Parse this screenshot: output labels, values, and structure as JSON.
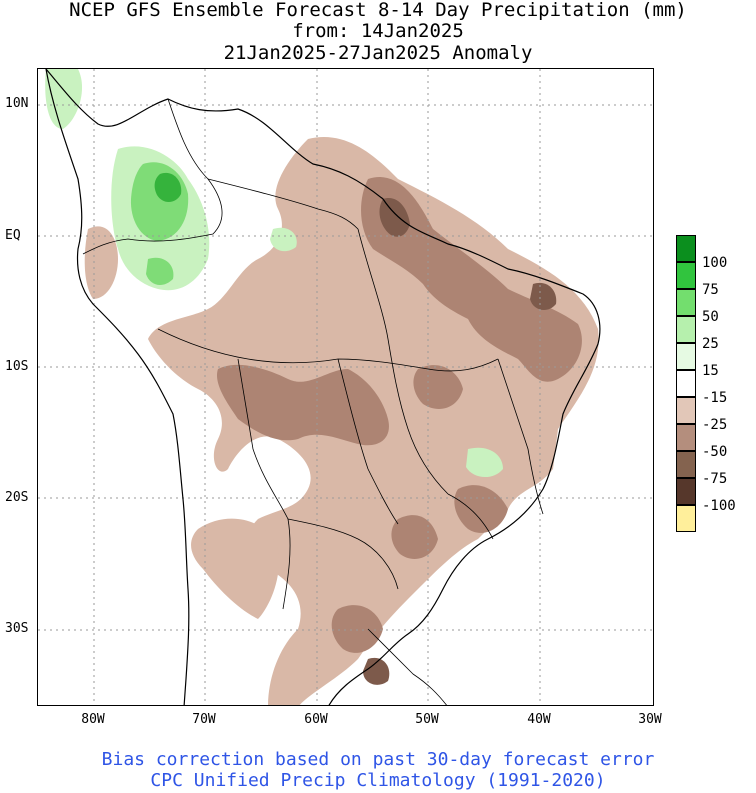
{
  "title": {
    "line1": "NCEP GFS Ensemble Forecast 8-14 Day Precipitation (mm)",
    "line2": "from: 14Jan2025",
    "line3": "21Jan2025-27Jan2025 Anomaly"
  },
  "axes": {
    "lat_labels": [
      "10N",
      "EQ",
      "10S",
      "20S",
      "30S"
    ],
    "lon_labels": [
      "80W",
      "70W",
      "60W",
      "50W",
      "40W",
      "30W"
    ]
  },
  "legend": {
    "items": [
      {
        "label": "100",
        "color": "#0b8f1e"
      },
      {
        "label": "75",
        "color": "#31c43e"
      },
      {
        "label": "50",
        "color": "#73de6e"
      },
      {
        "label": "25",
        "color": "#b6f0ad"
      },
      {
        "label": "15",
        "color": "#e6fae3"
      },
      {
        "label": "-15",
        "color": "#ffffff"
      },
      {
        "label": "-25",
        "color": "#e2c7b8"
      },
      {
        "label": "-50",
        "color": "#b48e7d"
      },
      {
        "label": "-75",
        "color": "#84634f"
      },
      {
        "label": "-100",
        "color": "#56372b"
      },
      {
        "label": "",
        "color": "#ffef9b"
      }
    ]
  },
  "colors": {
    "light_brown": "#d9b8a7",
    "mid_brown": "#ad8473",
    "dark_brown": "#7d5a4b",
    "light_green": "#c9f2c0",
    "mid_green": "#7fdc77",
    "dark_green": "#35b33c",
    "land_border": "#000000",
    "grid": "#9a9a9a",
    "footer_text": "#2f55e6"
  },
  "footer": {
    "line1": "Bias correction based on past 30-day forecast error",
    "line2": "CPC Unified Precip Climatology (1991-2020)"
  }
}
